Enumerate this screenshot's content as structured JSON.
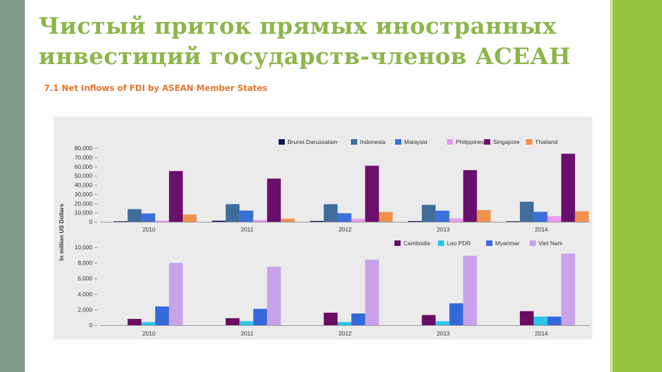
{
  "slide": {
    "title": "Чистый приток прямых иностранных инвестиций государств-членов АСЕАН"
  },
  "colors": {
    "title": "#8db54a",
    "left_band": "#7f9a86",
    "right_band": "#97c23c",
    "chart_heading": "#e8752a",
    "panel": "#ebebeb"
  },
  "chart_data": [
    {
      "type": "bar",
      "title": "7.1 Net Inflows of FDI by ASEAN Member States",
      "ylabel": "In million US Dollars",
      "categories": [
        "2010",
        "2011",
        "2012",
        "2013",
        "2014"
      ],
      "ylim": [
        0,
        80000
      ],
      "yticks": [
        0,
        10000,
        20000,
        30000,
        40000,
        50000,
        60000,
        70000,
        80000
      ],
      "ytick_labels": [
        "0",
        "10,000",
        "20,000",
        "30,000",
        "40,000",
        "50,000",
        "60,000",
        "70,000",
        "80,000"
      ],
      "legend_position": "top-right",
      "grid": false,
      "series": [
        {
          "name": "Brunei Darussalam",
          "color": "#0f1a5c",
          "values": [
            600,
            1200,
            900,
            800,
            600
          ]
        },
        {
          "name": "Indonesia",
          "color": "#3f6c9b",
          "values": [
            13800,
            19200,
            19100,
            18400,
            21800
          ]
        },
        {
          "name": "Malaysia",
          "color": "#3c70d8",
          "values": [
            9100,
            12200,
            9300,
            12100,
            10900
          ]
        },
        {
          "name": "Philippines",
          "color": "#e99cef",
          "values": [
            1300,
            2000,
            3200,
            3700,
            6200
          ]
        },
        {
          "name": "Singapore",
          "color": "#6b0f6e",
          "values": [
            55100,
            46900,
            60900,
            56100,
            73900
          ]
        },
        {
          "name": "Thailand",
          "color": "#f0924e",
          "values": [
            8000,
            3400,
            10700,
            12800,
            11500
          ]
        }
      ]
    },
    {
      "type": "bar",
      "ylabel": "In million US Dollars",
      "categories": [
        "2010",
        "2011",
        "2012",
        "2013",
        "2014"
      ],
      "ylim": [
        0,
        10000
      ],
      "yticks": [
        0,
        2000,
        4000,
        6000,
        8000,
        10000
      ],
      "ytick_labels": [
        "0",
        "2,000",
        "4,000",
        "6,000",
        "8,000",
        "10,000"
      ],
      "legend_position": "top-right",
      "grid": false,
      "series": [
        {
          "name": "Cambodia",
          "color": "#6a0b62",
          "values": [
            800,
            900,
            1600,
            1300,
            1800
          ]
        },
        {
          "name": "Lao PDR",
          "color": "#29c6e8",
          "values": [
            400,
            500,
            400,
            500,
            1100
          ]
        },
        {
          "name": "Myanmar",
          "color": "#3569db",
          "values": [
            2400,
            2100,
            1500,
            2800,
            1100
          ]
        },
        {
          "name": "Viet Nam",
          "color": "#c9a2eb",
          "values": [
            8000,
            7500,
            8400,
            8900,
            9200
          ]
        }
      ]
    }
  ]
}
